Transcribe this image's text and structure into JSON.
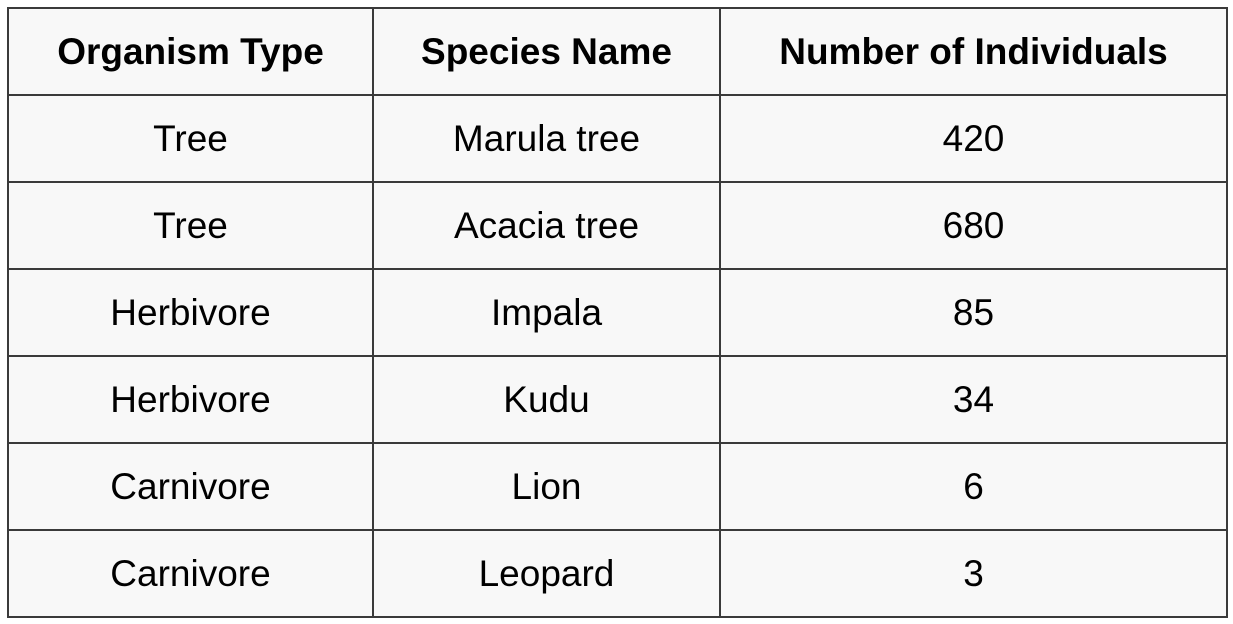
{
  "table": {
    "headers": [
      "Organism Type",
      "Species Name",
      "Number of Individuals"
    ],
    "rows": [
      [
        "Tree",
        "Marula tree",
        "420"
      ],
      [
        "Tree",
        "Acacia tree",
        "680"
      ],
      [
        "Herbivore",
        "Impala",
        "85"
      ],
      [
        "Herbivore",
        "Kudu",
        "34"
      ],
      [
        "Carnivore",
        "Lion",
        "6"
      ],
      [
        "Carnivore",
        "Leopard",
        "3"
      ]
    ]
  },
  "colors": {
    "background": "#f8f8f8",
    "border": "#3a3a3a",
    "text": "#000000"
  }
}
